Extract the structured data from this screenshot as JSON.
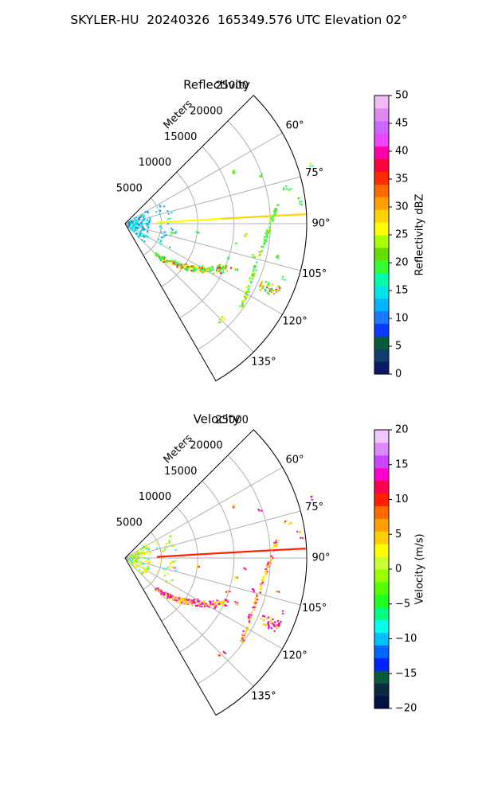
{
  "title": "SKYLER-HU  20240326  165349.576 UTC Elevation 02°",
  "range_axis_label": "Meters",
  "colors": {
    "grid": "#b0b0b0",
    "frame": "#000000",
    "beam": "#ffb400"
  },
  "chart_data": [
    {
      "type": "heatmap",
      "projection": "polar-sector",
      "title": "Reflectivity",
      "theta_range_deg": [
        45,
        150
      ],
      "theta_ticks": [
        "60°",
        "75°",
        "90°",
        "105°",
        "120°",
        "135°"
      ],
      "theta_tick_values": [
        60,
        75,
        90,
        105,
        120,
        135
      ],
      "r_ticks": [
        "5000",
        "10000",
        "15000",
        "20000",
        "25000"
      ],
      "r_tick_values": [
        5000,
        10000,
        15000,
        20000,
        25000
      ],
      "r_max": 25000,
      "colorbar": {
        "label": "Reflectivity dBZ",
        "min": 0,
        "max": 50,
        "ticks": [
          "0",
          "5",
          "10",
          "15",
          "20",
          "25",
          "30",
          "35",
          "40",
          "45",
          "50"
        ],
        "tick_values": [
          0,
          5,
          10,
          15,
          20,
          25,
          30,
          35,
          40,
          45,
          50
        ]
      }
    },
    {
      "type": "heatmap",
      "projection": "polar-sector",
      "title": "Velocity",
      "theta_range_deg": [
        45,
        150
      ],
      "theta_ticks": [
        "60°",
        "75°",
        "90°",
        "105°",
        "120°",
        "135°"
      ],
      "theta_tick_values": [
        60,
        75,
        90,
        105,
        120,
        135
      ],
      "r_ticks": [
        "5000",
        "10000",
        "15000",
        "20000",
        "25000"
      ],
      "r_tick_values": [
        5000,
        10000,
        15000,
        20000,
        25000
      ],
      "r_max": 25000,
      "colorbar": {
        "label": "Velocity (m/s)",
        "min": -20,
        "max": 20,
        "ticks": [
          "−20",
          "−15",
          "−10",
          "−5",
          "0",
          "5",
          "10",
          "15",
          "20"
        ],
        "tick_values": [
          -20,
          -15,
          -10,
          -5,
          0,
          5,
          10,
          15,
          20
        ]
      }
    }
  ]
}
